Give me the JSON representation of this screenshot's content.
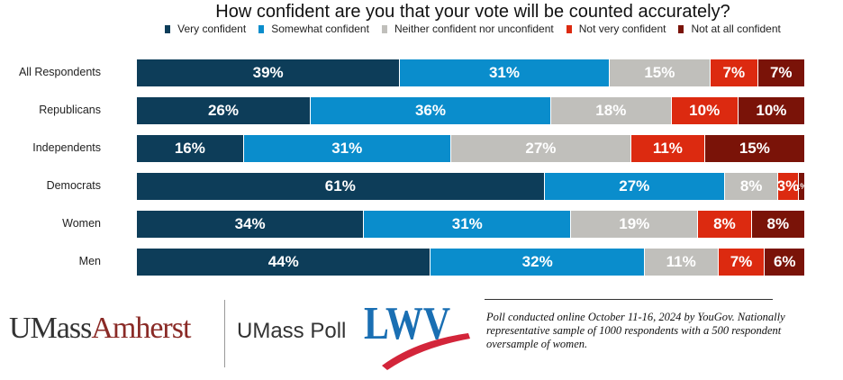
{
  "chart_data": {
    "type": "bar",
    "orientation": "horizontal-stacked-100",
    "title": "How confident are you that your vote will be counted accurately?",
    "legend_position": "top",
    "grid": false,
    "categories": [
      "All Respondents",
      "Republicans",
      "Independents",
      "Democrats",
      "Women",
      "Men"
    ],
    "series": [
      {
        "name": "Very confident",
        "color": "#0d3d59",
        "values": [
          39,
          26,
          16,
          61,
          34,
          44
        ]
      },
      {
        "name": "Somewhat confident",
        "color": "#0a8dcc",
        "values": [
          31,
          36,
          31,
          27,
          31,
          32
        ]
      },
      {
        "name": "Neither confident nor unconfident",
        "color": "#c0bfbb",
        "values": [
          15,
          18,
          27,
          8,
          19,
          11
        ]
      },
      {
        "name": "Not very confident",
        "color": "#dc2a10",
        "values": [
          7,
          10,
          11,
          3,
          8,
          7
        ]
      },
      {
        "name": "Not at all confident",
        "color": "#7a1308",
        "values": [
          7,
          10,
          15,
          1,
          8,
          6
        ]
      }
    ]
  },
  "logos": {
    "umass_part1": "UMass",
    "umass_part2": "Amherst",
    "umass_poll": "UMass Poll",
    "lwv": "LWV"
  },
  "note": "Poll conducted online October 11-16, 2024 by YouGov. Nationally representative sample of 1000 respondents with a 500 respondent oversample of women."
}
